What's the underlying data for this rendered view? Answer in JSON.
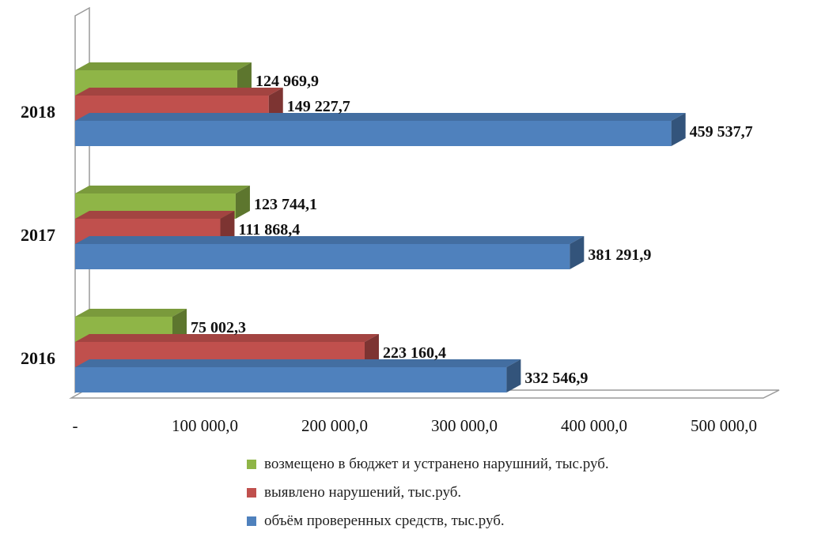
{
  "chart_data": {
    "type": "bar",
    "orientation": "horizontal",
    "categories": [
      "2016",
      "2017",
      "2018"
    ],
    "series": [
      {
        "name": "возмещено в бюджет и устранено нарушний, тыс.руб.",
        "color": "#8fb547",
        "values": [
          75002.3,
          123744.1,
          124969.9
        ],
        "labels": [
          "75 002,3",
          "123 744,1",
          "124 969,9"
        ]
      },
      {
        "name": "выявлено нарушений, тыс.руб.",
        "color": "#c0504d",
        "values": [
          223160.4,
          111868.4,
          149227.7
        ],
        "labels": [
          "223 160,4",
          "111 868,4",
          "149 227,7"
        ]
      },
      {
        "name": "объём проверенных средств, тыс.руб.",
        "color": "#4f81bd",
        "values": [
          332546.9,
          381291.9,
          459537.7
        ],
        "labels": [
          "332 546,9",
          "381 291,9",
          "459 537,7"
        ]
      }
    ],
    "xlim": [
      0,
      500000
    ],
    "xticks": [
      "-",
      "100 000,0",
      "200 000,0",
      "300 000,0",
      "400 000,0",
      "500 000,0"
    ],
    "legend_position": "bottom",
    "grid": false
  },
  "legend_order": [
    0,
    1,
    2
  ]
}
